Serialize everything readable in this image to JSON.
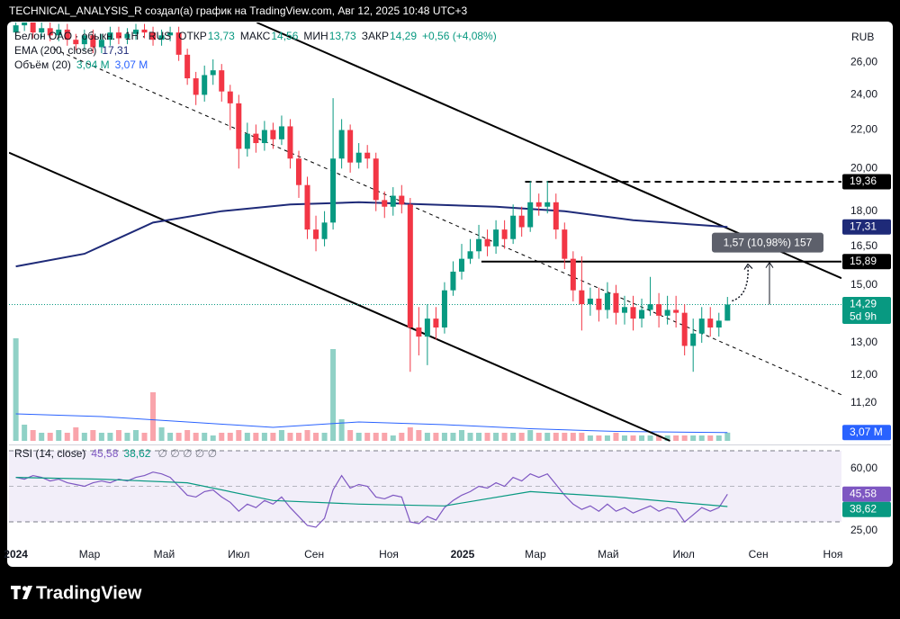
{
  "chart_data": {
    "type": "candlestick",
    "header": "TECHNICAL_ANALYSIS_R создал(а) график на TradingView.com, Авг 12, 2025 10:48 UTC+3",
    "brand": "TradingView",
    "currency": "RUB",
    "log_scale": true,
    "ylim": [
      10.2,
      28.7
    ],
    "yticks": [
      {
        "value": 26,
        "label": "26,00"
      },
      {
        "value": 24,
        "label": "24,00"
      },
      {
        "value": 22,
        "label": "22,00"
      },
      {
        "value": 20,
        "label": "20,00"
      },
      {
        "value": 18,
        "label": "18,00"
      },
      {
        "value": 16.5,
        "label": "16,50"
      },
      {
        "value": 15,
        "label": "15,00"
      },
      {
        "value": 13,
        "label": "13,00"
      },
      {
        "value": 12,
        "label": "12,00"
      },
      {
        "value": 11.2,
        "label": "11,20"
      }
    ],
    "xlim": [
      -0.8,
      96.3
    ],
    "xticks": [
      {
        "value": 0,
        "label": "2024",
        "bold": true
      },
      {
        "value": 8.6,
        "label": "Мар"
      },
      {
        "value": 17.3,
        "label": "Май"
      },
      {
        "value": 26,
        "label": "Июл"
      },
      {
        "value": 34.8,
        "label": "Сен"
      },
      {
        "value": 43.5,
        "label": "Ноя"
      },
      {
        "value": 52.1,
        "label": "2025",
        "bold": true
      },
      {
        "value": 60.6,
        "label": "Мар"
      },
      {
        "value": 69.1,
        "label": "Май"
      },
      {
        "value": 77.9,
        "label": "Июл"
      },
      {
        "value": 86.6,
        "label": "Сен"
      },
      {
        "value": 95.3,
        "label": "Ноя"
      }
    ],
    "up_color": "#089981",
    "down_color": "#f23645",
    "open": [
      28,
      28.5,
      29,
      28,
      28.3,
      27.8,
      28.2,
      27.5,
      27.2,
      27.8,
      27,
      27.5,
      28,
      27.6,
      27.9,
      28.2,
      28,
      27.5,
      27.8,
      28,
      26.5,
      25,
      24,
      25.2,
      25.5,
      24.2,
      23.5,
      21,
      21.8,
      21.3,
      22,
      21.5,
      22.2,
      20.5,
      19.2,
      17.2,
      16.8,
      17.5,
      20.5,
      22,
      20.3,
      20.8,
      20.5,
      18.5,
      18.2,
      18.7,
      18.3,
      13.5,
      13.2,
      13.8,
      13.5,
      14.8,
      15.5,
      16,
      16.3,
      16.8,
      16.5,
      17.2,
      16.8,
      17.8,
      17.3,
      18.4,
      18.2,
      18.4,
      17.2,
      16,
      14.8,
      14.3,
      14.5,
      14.1,
      14.7,
      14,
      14.2,
      13.8,
      14.1,
      14.3,
      13.9,
      14.1,
      14,
      12.9,
      13.3,
      13.8,
      13.5,
      13.73
    ],
    "high": [
      28.9,
      29.4,
      29.4,
      28.7,
      28.7,
      28.6,
      28.6,
      27.9,
      28.2,
      28.2,
      27.9,
      28.4,
      28.4,
      28.3,
      28.6,
      28.6,
      28.4,
      28.2,
      28.4,
      28.4,
      26.9,
      25.4,
      25.8,
      26.2,
      25.9,
      24.6,
      24,
      22.4,
      22.3,
      22.5,
      22.4,
      22.8,
      22.6,
      20.9,
      19.6,
      17.8,
      18,
      23.8,
      22.6,
      22.3,
      21.3,
      21.2,
      20.8,
      18.9,
      19.1,
      19.2,
      18.6,
      14.2,
      14.3,
      14.2,
      15.1,
      15.9,
      16.6,
      16.8,
      17.4,
      17.2,
      17.6,
      17.6,
      18.3,
      18.2,
      19.4,
      18.8,
      19.4,
      18.8,
      17.5,
      16.3,
      16.1,
      14.9,
      14.9,
      15.1,
      15,
      14.6,
      14.6,
      14.5,
      15.3,
      14.7,
      14.6,
      14.6,
      14.3,
      13.8,
      14.2,
      14.2,
      14,
      14.56
    ],
    "low": [
      27.6,
      28.1,
      27.6,
      27.6,
      27.4,
      27.4,
      27.1,
      26.8,
      26.8,
      26.6,
      26.6,
      27.1,
      27.2,
      27.2,
      27.5,
      27.6,
      27.1,
      27.1,
      27.4,
      26.1,
      24.6,
      23.4,
      23.6,
      24.6,
      23.6,
      22,
      20,
      20.6,
      20.8,
      20.9,
      21,
      21.2,
      20,
      18.6,
      16.8,
      16.3,
      16.5,
      17.2,
      20,
      19.8,
      20,
      20,
      18,
      17.7,
      17.8,
      17.9,
      12.1,
      12.6,
      12.3,
      13.1,
      13.3,
      14.6,
      15.2,
      15.8,
      16,
      16.1,
      16.2,
      16.4,
      16.6,
      16.9,
      17.1,
      17.8,
      17.9,
      16.8,
      15.6,
      14.4,
      13.4,
      13.9,
      13.7,
      13.8,
      13.6,
      13.6,
      13.4,
      13.5,
      13.9,
      13.5,
      13.6,
      13.5,
      12.6,
      12.1,
      13,
      13.2,
      13.2,
      13.73
    ],
    "close": [
      28.5,
      29,
      28,
      28.3,
      27.8,
      28.2,
      27.5,
      27.2,
      27.8,
      27,
      27.5,
      28,
      27.6,
      27.9,
      28.2,
      28,
      27.5,
      27.8,
      28,
      26.5,
      25,
      24,
      25.2,
      25.5,
      24.2,
      23.5,
      21,
      21.8,
      21.3,
      22,
      21.5,
      22.2,
      20.5,
      19.2,
      17.2,
      16.8,
      17.5,
      20.5,
      22,
      20.3,
      20.8,
      20.5,
      18.5,
      18.2,
      18.7,
      18.3,
      13.5,
      13.2,
      13.8,
      13.5,
      14.8,
      15.5,
      16,
      16.3,
      16.8,
      16.5,
      17.2,
      16.8,
      17.8,
      17.3,
      18.4,
      18.2,
      18.4,
      17.2,
      16,
      14.8,
      14.3,
      14.5,
      14.1,
      14.7,
      14,
      14.2,
      13.8,
      14.1,
      14.3,
      13.9,
      14.1,
      14,
      12.9,
      13.3,
      13.8,
      13.5,
      13.73,
      14.29
    ],
    "legend": {
      "symbol": "Белон ОАО · обыкн. · 1Н · RUS",
      "fields": [
        {
          "name": "ОТКР",
          "value": "13,73"
        },
        {
          "name": "МАКС",
          "value": "14,56"
        },
        {
          "name": "МИН",
          "value": "13,73"
        },
        {
          "name": "ЗАКР",
          "value": "14,29"
        }
      ],
      "change": "+0,56 (+4,08%)"
    },
    "last_price": {
      "value": 14.29,
      "label": "14,29",
      "countdown": "5d 9h"
    },
    "ema": {
      "name": "EMA (200, close)",
      "color": "#1e2a78",
      "x": [
        0,
        8,
        16,
        24,
        32,
        40,
        48,
        56,
        64,
        72,
        83
      ],
      "values": [
        15.7,
        16.2,
        17.5,
        18.0,
        18.3,
        18.4,
        18.3,
        18.2,
        18.0,
        17.6,
        17.31
      ],
      "last_label": "17,31"
    },
    "volume": {
      "name": "Объём (20)",
      "vlim": [
        0,
        40
      ],
      "last_label": "3,04 M",
      "values": [
        38,
        6,
        4,
        3,
        3,
        4,
        3,
        5,
        3,
        4,
        3,
        3,
        4,
        3,
        4,
        3,
        18,
        5,
        3,
        3,
        4,
        3,
        3,
        2,
        3,
        3,
        4,
        3,
        3,
        3,
        3,
        4,
        3,
        3,
        4,
        3,
        3,
        34,
        8,
        4,
        3,
        3,
        3,
        3,
        2,
        3,
        5,
        4,
        3,
        3,
        3,
        3,
        4,
        3,
        3,
        3,
        3,
        3,
        3,
        3,
        4,
        3,
        3,
        3,
        3,
        3,
        3,
        2,
        2,
        2,
        3,
        2,
        2,
        2,
        2,
        2,
        2,
        2,
        2,
        2,
        2,
        2,
        2,
        3.04
      ],
      "ma": {
        "color": "#2962ff",
        "x": [
          0,
          10,
          20,
          30,
          40,
          50,
          60,
          70,
          83
        ],
        "values": [
          10,
          9,
          7,
          5,
          7,
          6,
          4.5,
          3.5,
          3.07
        ],
        "last_label": "3,07 M"
      }
    },
    "rsi": {
      "name": "RSI (14, close)",
      "color": "#7e57c2",
      "ylim": [
        18.4,
        71.5
      ],
      "yticks": [
        {
          "value": 60,
          "label": "60,00"
        },
        {
          "value": 25,
          "label": "25,00"
        }
      ],
      "bands": [
        70,
        50,
        30
      ],
      "values": [
        55,
        54,
        56,
        55,
        53,
        54,
        52,
        51,
        50,
        52,
        53,
        52,
        54,
        53,
        55,
        56,
        58,
        57,
        55,
        50,
        45,
        44,
        47,
        48,
        44,
        41,
        36,
        40,
        38,
        42,
        40,
        44,
        38,
        33,
        28,
        27,
        32,
        48,
        56,
        49,
        51,
        50,
        44,
        43,
        45,
        44,
        30,
        29,
        33,
        31,
        38,
        42,
        45,
        47,
        50,
        49,
        52,
        50,
        55,
        53,
        57,
        55,
        57,
        51,
        45,
        40,
        37,
        39,
        36,
        40,
        36,
        38,
        35,
        37,
        39,
        36,
        38,
        37,
        30,
        34,
        38,
        36,
        38,
        45.58
      ],
      "last_label": "45,58",
      "ma": {
        "color": "#089981",
        "x": [
          0,
          10,
          20,
          30,
          40,
          50,
          60,
          70,
          83
        ],
        "values": [
          55,
          54,
          52,
          42,
          40,
          39,
          47,
          44,
          38.62
        ],
        "last_label": "38,62"
      },
      "empty_values": "∅ ∅ ∅ ∅ ∅"
    },
    "levels": [
      {
        "value": 19.36,
        "label": "19,36",
        "from_x": 59.4,
        "style": "dashed"
      },
      {
        "value": 15.89,
        "label": "15,89",
        "from_x": 54.3,
        "style": "solid"
      }
    ],
    "trendlines": [
      {
        "points": [
          [
            28.1,
            28.7
          ],
          [
            96.3,
            15.25
          ]
        ],
        "style": "solid"
      },
      {
        "points": [
          [
            -0.8,
            20.8
          ],
          [
            76.3,
            10.2
          ]
        ],
        "style": "solid"
      },
      {
        "points": [
          [
            4.4,
            26.9
          ],
          [
            96.3,
            11.43
          ]
        ],
        "style": "dashed"
      }
    ],
    "measure": {
      "x": 87.9,
      "from": 14.29,
      "to": 15.86,
      "label": "1,57 (10,98%) 157"
    }
  }
}
